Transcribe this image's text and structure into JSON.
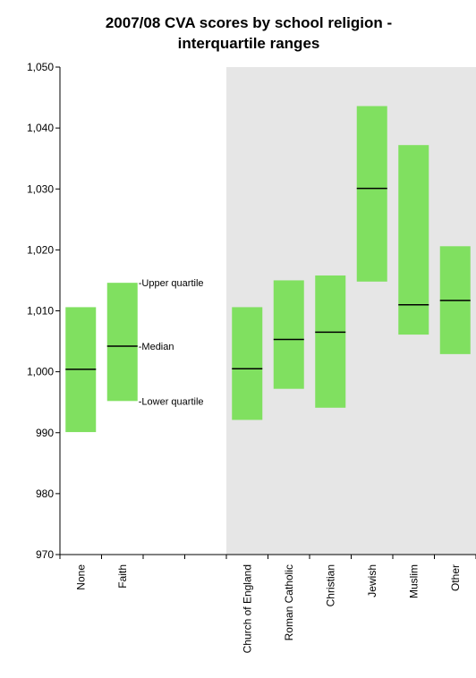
{
  "chart_data": {
    "type": "boxplot-interquartile",
    "title_lines": [
      "2007/08 CVA scores by school religion -",
      "interquartile ranges"
    ],
    "ylim": [
      970,
      1050
    ],
    "yticks": [
      970,
      980,
      990,
      1000,
      1010,
      1020,
      1030,
      1040,
      1050
    ],
    "ytick_labels": [
      "970",
      "980",
      "990",
      "1,000",
      "1,010",
      "1,020",
      "1,030",
      "1,040",
      "1,050"
    ],
    "slots": [
      "None",
      "Faith",
      "",
      "",
      "Church of England",
      "Roman Catholic",
      "Christian",
      "Jewish",
      "Muslim",
      "Other"
    ],
    "shaded_from_slot": 4,
    "box_color": "#80e060",
    "shade_color": "#e6e6e6",
    "boxes": [
      {
        "category": "None",
        "lower": 990.1,
        "median": 1000.4,
        "upper": 1010.6
      },
      {
        "category": "Faith",
        "lower": 995.2,
        "median": 1004.2,
        "upper": 1014.6
      },
      {
        "category": "Church of England",
        "lower": 992.1,
        "median": 1000.5,
        "upper": 1010.6
      },
      {
        "category": "Roman Catholic",
        "lower": 997.2,
        "median": 1005.3,
        "upper": 1015.0
      },
      {
        "category": "Christian",
        "lower": 994.1,
        "median": 1006.5,
        "upper": 1015.8
      },
      {
        "category": "Jewish",
        "lower": 1014.8,
        "median": 1030.1,
        "upper": 1043.6
      },
      {
        "category": "Muslim",
        "lower": 1006.1,
        "median": 1011.0,
        "upper": 1037.2
      },
      {
        "category": "Other",
        "lower": 1002.9,
        "median": 1011.7,
        "upper": 1020.6
      }
    ],
    "annotations": {
      "target": "Faith",
      "upper": "-Upper quartile",
      "median": "-Median",
      "lower": "-Lower quartile"
    }
  }
}
